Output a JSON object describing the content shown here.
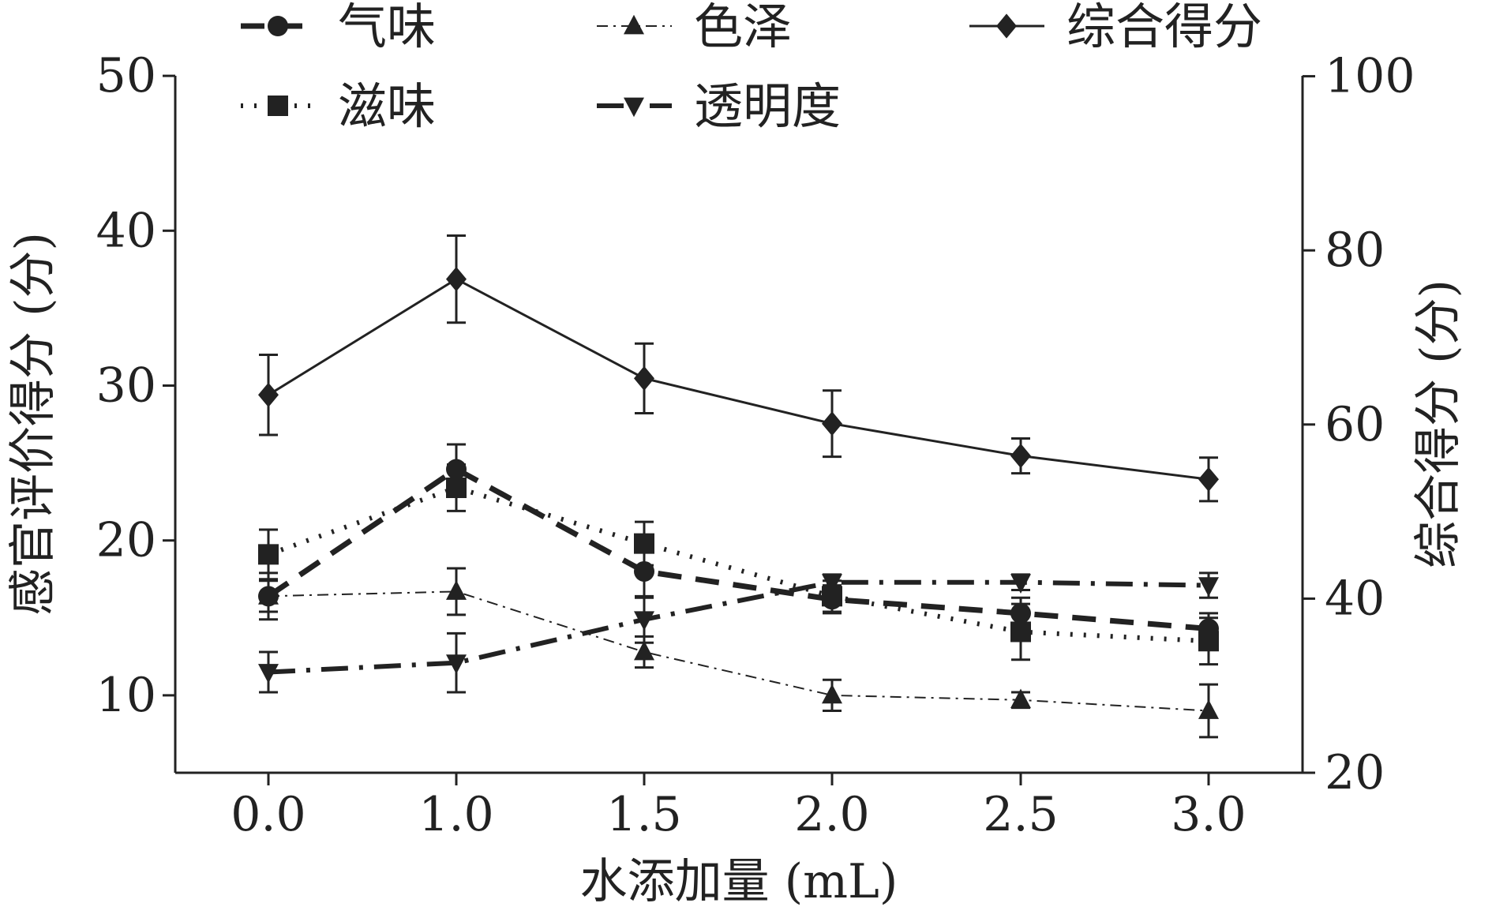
{
  "chart_data": {
    "type": "line",
    "categories": [
      "0.0",
      "1.0",
      "1.5",
      "2.0",
      "2.5",
      "3.0"
    ],
    "xlabel": "水添加量 (mL)",
    "ylabel_left": "感官评价得分 (分)",
    "ylabel_right": "综合得分 (分)",
    "ylim_left": [
      5,
      50
    ],
    "yticks_left": [
      10,
      20,
      30,
      40,
      50
    ],
    "ylim_right": [
      20,
      100
    ],
    "yticks_right": [
      20,
      40,
      60,
      80,
      100
    ],
    "grid": false,
    "legend_position": "top",
    "series": [
      {
        "name": "气味",
        "axis": "left",
        "marker": "circle",
        "dash": "dash",
        "values": [
          16.4,
          24.6,
          18.0,
          16.2,
          15.3,
          14.3
        ],
        "errors": [
          1.5,
          1.6,
          1.7,
          0.9,
          1.0,
          1.0
        ]
      },
      {
        "name": "色泽",
        "axis": "left",
        "marker": "triangle-up",
        "dash": "dashdot-thin",
        "values": [
          16.4,
          16.7,
          12.8,
          10.0,
          9.7,
          9.0
        ],
        "errors": [
          1.0,
          1.5,
          1.0,
          1.0,
          0.5,
          1.7
        ]
      },
      {
        "name": "综合得分",
        "axis": "right",
        "marker": "diamond",
        "dash": "solid",
        "values": [
          63.4,
          76.7,
          65.3,
          60.1,
          56.4,
          53.7
        ],
        "errors": [
          4.6,
          5.0,
          4.0,
          3.8,
          2.0,
          2.5
        ]
      },
      {
        "name": "滋味",
        "axis": "left",
        "marker": "square",
        "dash": "dot",
        "values": [
          19.1,
          23.4,
          19.8,
          16.4,
          14.1,
          13.5
        ],
        "errors": [
          1.6,
          1.5,
          1.4,
          1.0,
          1.8,
          1.5
        ]
      },
      {
        "name": "透明度",
        "axis": "left",
        "marker": "triangle-down",
        "dash": "dashdot-thick",
        "values": [
          11.5,
          12.1,
          14.9,
          17.3,
          17.3,
          17.1
        ],
        "errors": [
          1.3,
          1.9,
          1.5,
          0.5,
          0.5,
          0.8
        ]
      }
    ]
  }
}
